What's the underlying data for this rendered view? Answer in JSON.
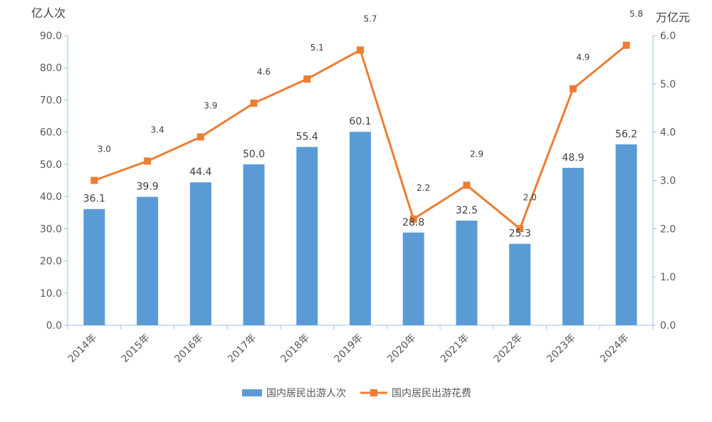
{
  "chart_data": {
    "type": "bar",
    "categories": [
      "2014年",
      "2015年",
      "2016年",
      "2017年",
      "2018年",
      "2019年",
      "2020年",
      "2021年",
      "2022年",
      "2023年",
      "2024年"
    ],
    "series": [
      {
        "name": "国内居民出游人次",
        "type": "bar",
        "axis": "left",
        "color": "#5b9bd5",
        "values": [
          36.1,
          39.9,
          44.4,
          50.0,
          55.4,
          60.1,
          28.8,
          32.5,
          25.3,
          48.9,
          56.2
        ],
        "labels": [
          "36.1",
          "39.9",
          "44.4",
          "50.0",
          "55.4",
          "60.1",
          "28.8",
          "32.5",
          "25.3",
          "48.9",
          "56.2"
        ]
      },
      {
        "name": "国内居民出游花费",
        "type": "line",
        "axis": "right",
        "color": "#ed7d31",
        "values": [
          3.0,
          3.4,
          3.9,
          4.6,
          5.1,
          5.7,
          2.2,
          2.9,
          2.0,
          4.9,
          5.8
        ],
        "labels": [
          "3.0",
          "3.4",
          "3.9",
          "4.6",
          "5.1",
          "5.7",
          "2.2",
          "2.9",
          "2.0",
          "4.9",
          "5.8"
        ]
      }
    ],
    "left_axis": {
      "unit": "亿人次",
      "ylim": [
        0,
        90
      ],
      "ticks": [
        "0.0",
        "10.0",
        "20.0",
        "30.0",
        "40.0",
        "50.0",
        "60.0",
        "70.0",
        "80.0",
        "90.0"
      ]
    },
    "right_axis": {
      "unit": "万亿元",
      "ylim": [
        0,
        6
      ],
      "ticks": [
        "0.0",
        "1.0",
        "2.0",
        "3.0",
        "4.0",
        "5.0",
        "6.0"
      ]
    },
    "legend_position": "bottom",
    "grid": false
  }
}
